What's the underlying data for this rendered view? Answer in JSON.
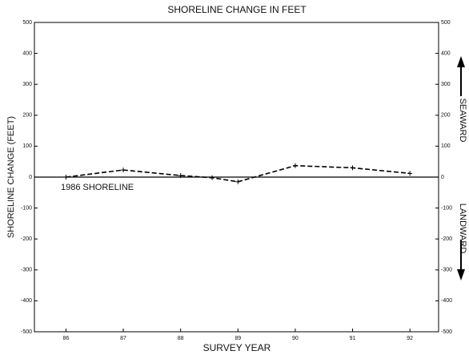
{
  "chart_data": {
    "type": "line",
    "title": "SHORELINE CHANGE IN FEET",
    "xlabel": "SURVEY YEAR",
    "ylabel": "SHORELINE CHANGE (FEET)",
    "x": [
      86,
      87,
      88,
      88.55,
      89,
      90,
      91,
      92
    ],
    "values": [
      0,
      23,
      5,
      -2,
      -15,
      37,
      30,
      12
    ],
    "color": "#000000",
    "line_style": "dashed",
    "xlim": [
      85.45,
      92.5
    ],
    "xticks": [
      86,
      87,
      88,
      89,
      90,
      91,
      92
    ],
    "ylim": [
      -500,
      500
    ],
    "yticks": [
      -500,
      -400,
      -300,
      -200,
      -100,
      0,
      100,
      200,
      300,
      400,
      500
    ],
    "y2lim": [
      -500,
      500
    ],
    "y2ticks": [
      -500,
      -400,
      -300,
      -200,
      -100,
      0,
      100,
      200,
      300,
      400,
      500
    ],
    "annotations": [
      "1986 SHORELINE"
    ],
    "right_labels": [
      "SEAWARD",
      "LANDWARD"
    ]
  }
}
